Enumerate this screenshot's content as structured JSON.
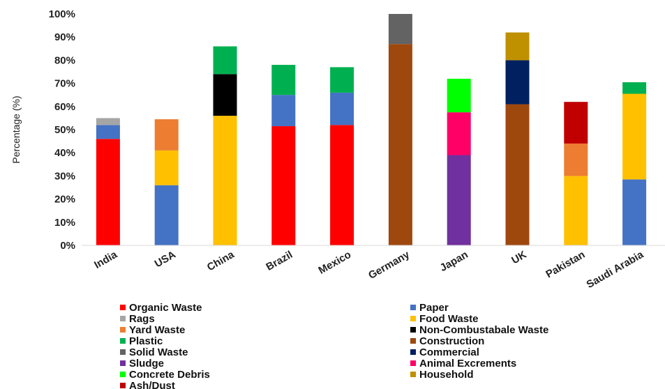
{
  "chart_data": {
    "type": "bar",
    "stacked": true,
    "title": "",
    "xlabel": "",
    "ylabel": "Percentage (%)",
    "ylim": [
      0,
      100
    ],
    "yticks": [
      "0%",
      "10%",
      "20%",
      "30%",
      "40%",
      "50%",
      "60%",
      "70%",
      "80%",
      "90%",
      "100%"
    ],
    "grid": false,
    "legend_position": "bottom",
    "categories": [
      "India",
      "USA",
      "China",
      "Brazil",
      "Mexico",
      "Germany",
      "Japan",
      "UK",
      "Pakistan",
      "Saudi Arabia"
    ],
    "series": [
      {
        "name": "Organic Waste",
        "color": "#ff0000",
        "values": [
          46,
          0,
          0,
          51.5,
          52,
          0,
          0,
          0,
          0,
          0
        ]
      },
      {
        "name": "Paper",
        "color": "#4472c4",
        "values": [
          6,
          26,
          0,
          13.5,
          14,
          0,
          0,
          0,
          0,
          28.5
        ]
      },
      {
        "name": "Rags",
        "color": "#a5a5a5",
        "values": [
          3,
          0,
          0,
          0,
          0,
          0,
          0,
          0,
          0,
          0
        ]
      },
      {
        "name": "Food Waste",
        "color": "#ffc000",
        "values": [
          0,
          15,
          56,
          0,
          0,
          0,
          0,
          0,
          30,
          37
        ]
      },
      {
        "name": "Yard Waste",
        "color": "#ed7d31",
        "values": [
          0,
          13.5,
          0,
          0,
          0,
          0,
          0,
          0,
          14,
          0
        ]
      },
      {
        "name": "Non-Combustabale Waste",
        "color": "#000000",
        "values": [
          0,
          0,
          18,
          0,
          0,
          0,
          0,
          0,
          0,
          0
        ]
      },
      {
        "name": "Plastic",
        "color": "#00b050",
        "values": [
          0,
          0,
          12,
          13,
          11,
          0,
          0,
          0,
          0,
          5
        ]
      },
      {
        "name": "Construction",
        "color": "#9e480e",
        "values": [
          0,
          0,
          0,
          0,
          0,
          87,
          0,
          61,
          0,
          0
        ]
      },
      {
        "name": "Solid Waste",
        "color": "#636363",
        "values": [
          0,
          0,
          0,
          0,
          0,
          13,
          0,
          0,
          0,
          0
        ]
      },
      {
        "name": "Commercial",
        "color": "#002060",
        "values": [
          0,
          0,
          0,
          0,
          0,
          0,
          0,
          19,
          0,
          0
        ]
      },
      {
        "name": "Sludge",
        "color": "#7030a0",
        "values": [
          0,
          0,
          0,
          0,
          0,
          0,
          39,
          0,
          0,
          0
        ]
      },
      {
        "name": "Animal Excrements",
        "color": "#ff0066",
        "values": [
          0,
          0,
          0,
          0,
          0,
          0,
          18.5,
          0,
          0,
          0
        ]
      },
      {
        "name": "Concrete Debris",
        "color": "#00ff00",
        "values": [
          0,
          0,
          0,
          0,
          0,
          0,
          14.5,
          0,
          0,
          0
        ]
      },
      {
        "name": "Household",
        "color": "#bf9000",
        "values": [
          0,
          0,
          0,
          0,
          0,
          0,
          0,
          12,
          0,
          0
        ]
      },
      {
        "name": "Ash/Dust",
        "color": "#c00000",
        "values": [
          0,
          0,
          0,
          0,
          0,
          0,
          0,
          0,
          18,
          0
        ]
      }
    ],
    "legend_order": [
      "Organic Waste",
      "Paper",
      "Rags",
      "Food Waste",
      "Yard Waste",
      "Non-Combustabale Waste",
      "Plastic",
      "Construction",
      "Solid Waste",
      "Commercial",
      "Sludge",
      "Animal Excrements",
      "Concrete Debris",
      "Household",
      "Ash/Dust"
    ]
  }
}
